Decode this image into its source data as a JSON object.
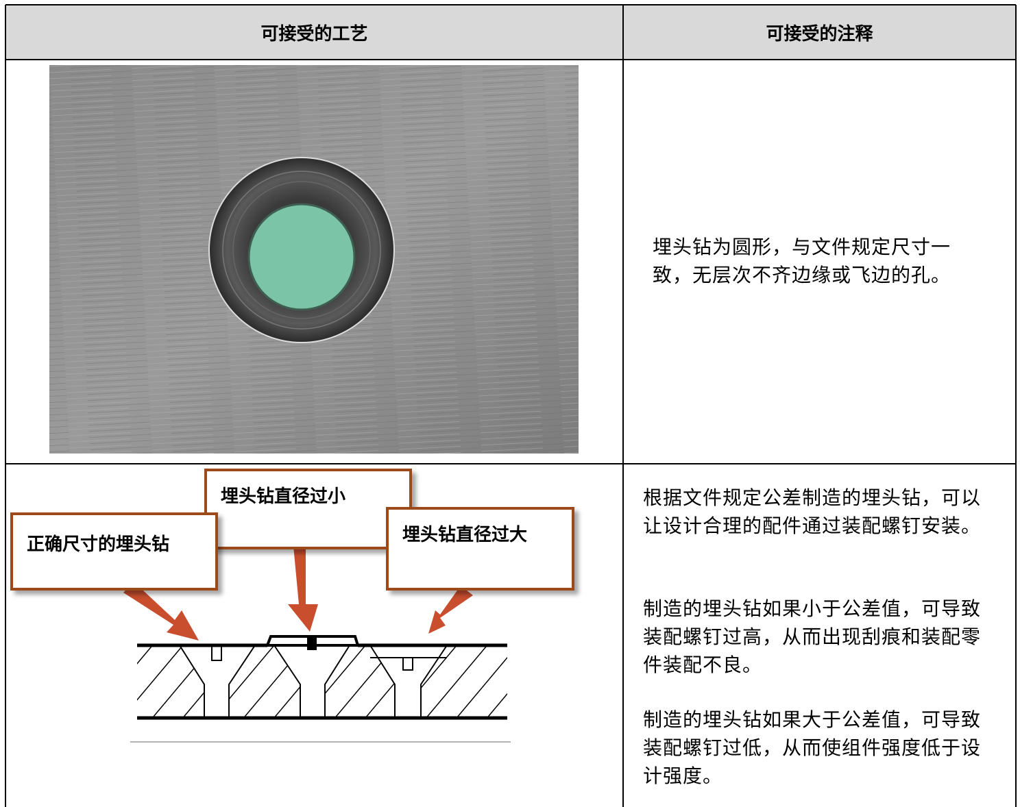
{
  "table": {
    "headers": [
      "可接受的工艺",
      "可接受的注释"
    ],
    "rows": [
      {
        "notes": [
          "埋头钻为圆形，与文件规定尺寸一致，无层次不齐边缘或飞边的孔。"
        ]
      },
      {
        "callouts": [
          "埋头钻直径过小",
          "正确尺寸的埋头钻",
          "埋头钻直径过大"
        ],
        "notes": [
          "根据文件规定公差制造的埋头钻，可以让设计合理的配件通过装配螺钉安装。",
          "制造的埋头钻如果小于公差值，可导致装配螺钉过高，从而出现刮痕和装配零件装配不良。",
          "制造的埋头钻如果大于公差值，可导致装配螺钉过低，从而使组件强度低于设计强度。"
        ]
      }
    ]
  }
}
